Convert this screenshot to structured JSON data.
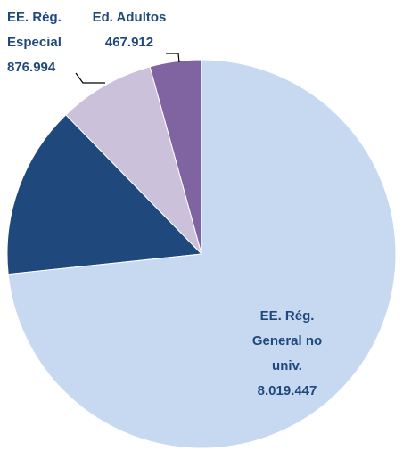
{
  "chart_data": {
    "type": "pie",
    "categories": [
      "EE. Rég. General no univ.",
      null,
      "EE. Rég. Especial",
      "Ed. Adultos"
    ],
    "values": [
      8019447,
      1570000,
      876994,
      467912
    ],
    "value_labels": [
      "8.019.447",
      null,
      "876.994",
      "467.912"
    ],
    "colors": [
      "#c6d9f1",
      "#1f497d",
      "#ccc1da",
      "#8064a2"
    ]
  }
}
